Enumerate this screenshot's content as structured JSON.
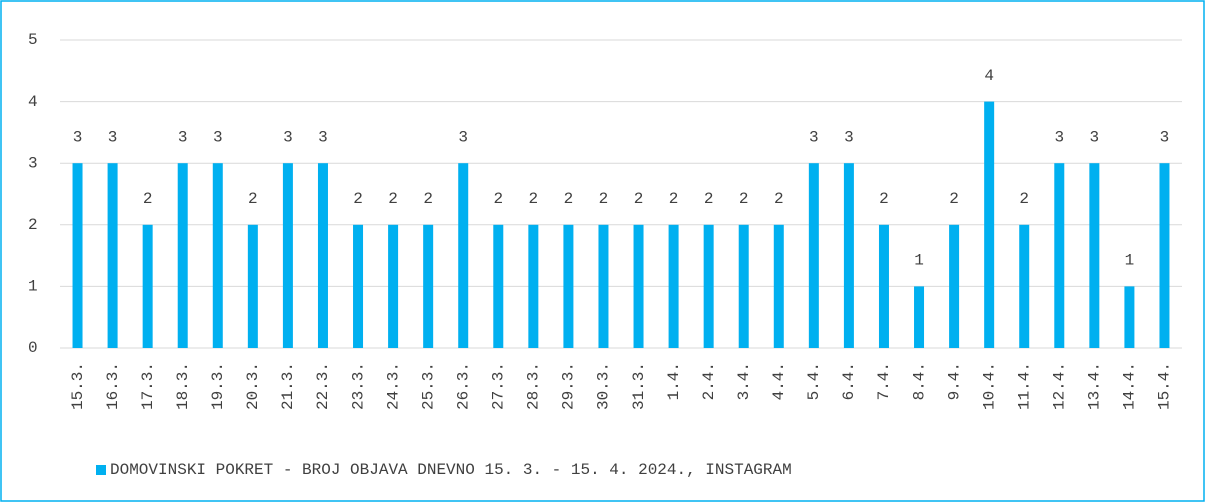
{
  "chart_data": {
    "type": "bar",
    "categories": [
      "15.3.",
      "16.3.",
      "17.3.",
      "18.3.",
      "19.3.",
      "20.3.",
      "21.3.",
      "22.3.",
      "23.3.",
      "24.3.",
      "25.3.",
      "26.3.",
      "27.3.",
      "28.3.",
      "29.3.",
      "30.3.",
      "31.3.",
      "1.4.",
      "2.4.",
      "3.4.",
      "4.4.",
      "5.4.",
      "6.4.",
      "7.4.",
      "8.4.",
      "9.4.",
      "10.4.",
      "11.4.",
      "12.4.",
      "13.4.",
      "14.4.",
      "15.4."
    ],
    "series": [
      {
        "name": "DOMOVINSKI POKRET - BROJ OBJAVA DNEVNO 15. 3. - 15. 4. 2024., INSTAGRAM",
        "color": "#00b0f0",
        "values": [
          3,
          3,
          2,
          3,
          3,
          2,
          3,
          3,
          2,
          2,
          2,
          3,
          2,
          2,
          2,
          2,
          2,
          2,
          2,
          2,
          2,
          3,
          3,
          2,
          1,
          2,
          4,
          2,
          3,
          3,
          1,
          3
        ]
      }
    ],
    "ylim": [
      0,
      5
    ],
    "yticks": [
      0,
      1,
      2,
      3,
      4,
      5
    ],
    "grid": true,
    "legend": "bottom"
  }
}
